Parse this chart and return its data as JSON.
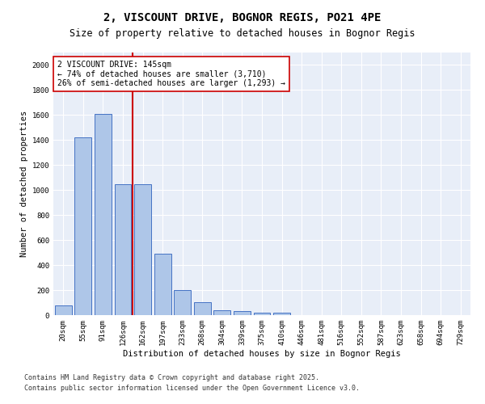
{
  "title_line1": "2, VISCOUNT DRIVE, BOGNOR REGIS, PO21 4PE",
  "title_line2": "Size of property relative to detached houses in Bognor Regis",
  "xlabel": "Distribution of detached houses by size in Bognor Regis",
  "ylabel": "Number of detached properties",
  "categories": [
    "20sqm",
    "55sqm",
    "91sqm",
    "126sqm",
    "162sqm",
    "197sqm",
    "233sqm",
    "268sqm",
    "304sqm",
    "339sqm",
    "375sqm",
    "410sqm",
    "446sqm",
    "481sqm",
    "516sqm",
    "552sqm",
    "587sqm",
    "623sqm",
    "658sqm",
    "694sqm",
    "729sqm"
  ],
  "values": [
    80,
    1420,
    1610,
    1050,
    1050,
    490,
    200,
    105,
    40,
    30,
    20,
    20,
    0,
    0,
    0,
    0,
    0,
    0,
    0,
    0,
    0
  ],
  "bar_color": "#aec6e8",
  "bar_edge_color": "#4472c4",
  "red_line_x": 3.5,
  "annotation_text": "2 VISCOUNT DRIVE: 145sqm\n← 74% of detached houses are smaller (3,710)\n26% of semi-detached houses are larger (1,293) →",
  "annotation_box_color": "#ffffff",
  "annotation_box_edge": "#cc0000",
  "red_line_color": "#cc0000",
  "ylim": [
    0,
    2100
  ],
  "yticks": [
    0,
    200,
    400,
    600,
    800,
    1000,
    1200,
    1400,
    1600,
    1800,
    2000
  ],
  "background_color": "#e8eef8",
  "footer_line1": "Contains HM Land Registry data © Crown copyright and database right 2025.",
  "footer_line2": "Contains public sector information licensed under the Open Government Licence v3.0.",
  "title_fontsize": 10,
  "subtitle_fontsize": 8.5,
  "axis_label_fontsize": 7.5,
  "tick_fontsize": 6.5,
  "annotation_fontsize": 7
}
